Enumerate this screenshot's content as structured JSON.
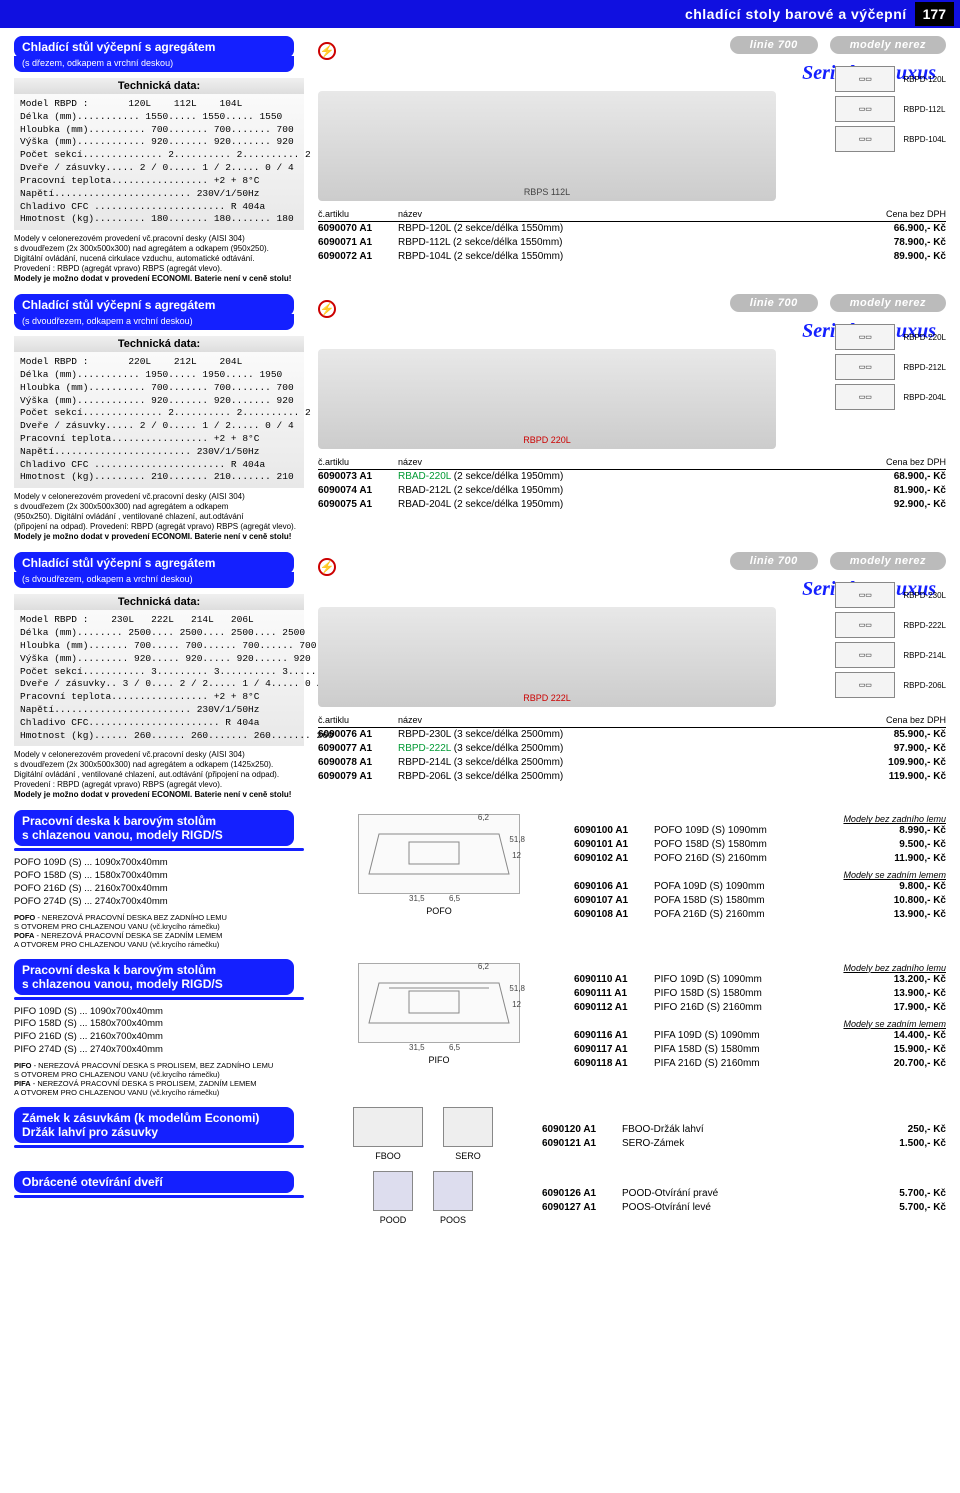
{
  "page": {
    "header_title": "chladící stoly barové a výčepní",
    "page_number": "177"
  },
  "common": {
    "linie": "linie 700",
    "modely": "modely nerez",
    "serie": "Serie bar-Luxus",
    "tech_header": "Technická data:",
    "price_cols": {
      "c1": "č.artiklu",
      "c2": "název",
      "c3": "Cena bez DPH"
    }
  },
  "sections": [
    {
      "title": "Chladící stůl výčepní s agregátem",
      "subtitle": "(s dřezem, odkapem a vrchní deskou)",
      "tech": "Model RBPD :       120L    112L    104L\nDélka (mm)........... 1550..... 1550..... 1550\nHloubka (mm).......... 700....... 700....... 700\nVýška (mm)............ 920....... 920....... 920\nPočet sekcí.............. 2.......... 2.......... 2\nDveře / zásuvky..... 2 / 0..... 1 / 2..... 0 / 4\nPracovní teplota................. +2 + 8°C\nNapětí........................ 230V/1/50Hz\nChladivo CFC ....................... R 404a\nHmotnost (kg)......... 180....... 180....... 180",
      "notes": "Modely v celonerezovém provedení vč.pracovní desky (AISI 304)\ns dvoudřezem (2x 300x500x300) nad agregátem a odkapem (950x250).\nDigitální ovládání, nucená cirkulace vzduchu, automatické odtávání.\nProvedení : RBPD (agregát vpravo) RBPS (agregát vlevo).\n<b>Modely je možno dodat v provedení ECONOMI. Baterie není v ceně stolu!</b>",
      "img_label": "RBPS 112L",
      "icons": [
        "RBPD-120L",
        "RBPD-112L",
        "RBPD-104L"
      ],
      "prices": [
        {
          "art": "6090070 A1",
          "name": "RBPD-120L (2 sekce/délka 1550mm)",
          "price": "66.900,- Kč"
        },
        {
          "art": "6090071 A1",
          "name": "RBPD-112L (2 sekce/délka 1550mm)",
          "price": "78.900,- Kč"
        },
        {
          "art": "6090072 A1",
          "name": "RBPD-104L (2 sekce/délka 1550mm)",
          "price": "89.900,- Kč"
        }
      ]
    },
    {
      "title": "Chladící stůl výčepní s agregátem",
      "subtitle": "(s dvoudřezem, odkapem a vrchní deskou)",
      "tech": "Model RBPD :       220L    212L    204L\nDélka (mm)........... 1950..... 1950..... 1950\nHloubka (mm).......... 700....... 700....... 700\nVýška (mm)............ 920....... 920....... 920\nPočet sekcí.............. 2.......... 2.......... 2\nDveře / zásuvky..... 2 / 0..... 1 / 2..... 0 / 4\nPracovní teplota................. +2 + 8°C\nNapětí........................ 230V/1/50Hz\nChladivo CFC ....................... R 404a\nHmotnost (kg)......... 210....... 210....... 210",
      "notes": "Modely v celonerezovém provedení vč.pracovní desky (AISI 304)\ns dvoudřezem (2x 300x500x300) nad agregátem a odkapem\n(950x250). Digitální ovládání , ventilované chlazení, aut.odtávání\n(připojení na odpad). Provedení: RBPD (agregát vpravo) RBPS (agregát vlevo).\n<b>Modely je možno dodat v provedení ECONOMI. Baterie není v ceně stolu!</b>",
      "img_label": "RBPD 220L",
      "img_label_color": "#cc0000",
      "icons": [
        "RBPD-220L",
        "RBPD-212L",
        "RBPD-204L"
      ],
      "prices": [
        {
          "art": "6090073 A1",
          "name_pre": "",
          "name_hl": "RBAD-220L",
          "hl_color": "green",
          "name_post": " (2 sekce/délka 1950mm)",
          "price": "68.900,- Kč"
        },
        {
          "art": "6090074 A1",
          "name": "RBAD-212L (2 sekce/délka 1950mm)",
          "price": "81.900,- Kč"
        },
        {
          "art": "6090075 A1",
          "name": "RBAD-204L (2 sekce/délka 1950mm)",
          "price": "92.900,- Kč"
        }
      ]
    },
    {
      "title": "Chladící stůl výčepní s agregátem",
      "subtitle": "(s dvoudřezem, odkapem a vrchní deskou)",
      "tech": "Model RBPD :    230L   222L   214L   206L\nDélka (mm)........ 2500.... 2500.... 2500.... 2500\nHloubka (mm)....... 700..... 700...... 700...... 700\nVýška (mm)......... 920..... 920..... 920...... 920\nPočet sekcí........... 3......... 3.......... 3.......... 3\nDveře / zásuvky.. 3 / 0.... 2 / 2..... 1 / 4..... 0 /6\nPracovní teplota................. +2 + 8°C\nNapětí........................ 230V/1/50Hz\nChladivo CFC....................... R 404a\nHmotnost (kg)...... 260...... 260....... 260....... 260",
      "notes": "Modely v celonerezovém provedení vč.pracovní desky (AISI 304)\ns dvoudřezem (2x 300x500x300) nad agregátem a odkapem (1425x250).\nDigitální ovládání , ventilované chlazení, aut.odtávání (připojení na odpad).\nProvedení : RBPD (agregát vpravo) RBPS (agregát vlevo).\n<b>Modely je možno dodat v provedení ECONOMI. Baterie není v ceně stolu!</b>",
      "img_label": "RBPD 222L",
      "img_label_color": "#cc0000",
      "icons": [
        "RBPD-230L",
        "RBPD-222L",
        "RBPD-214L",
        "RBPD-206L"
      ],
      "prices": [
        {
          "art": "6090076 A1",
          "name": "RBPD-230L (3 sekce/délka 2500mm)",
          "price": "85.900,- Kč"
        },
        {
          "art": "6090077 A1",
          "name_pre": "",
          "name_hl": "RBPD-222L",
          "hl_color": "green",
          "name_post": " (3 sekce/délka 2500mm)",
          "price": "97.900,- Kč"
        },
        {
          "art": "6090078 A1",
          "name": "RBPD-214L (3 sekce/délka 2500mm)",
          "price": "109.900,- Kč"
        },
        {
          "art": "6090079 A1",
          "name": "RBPD-206L (3 sekce/délka 2500mm)",
          "price": "119.900,- Kč"
        }
      ]
    }
  ],
  "pofo": {
    "title": "Pracovní deska k barovým stolům\ns chlazenou vanou, modely RIGD/S",
    "list": "POFO 109D (S) ... 1090x700x40mm\nPOFO 158D (S) ... 1580x700x40mm\nPOFO 216D (S) ... 2160x700x40mm\nPOFO 274D (S) ... 2740x700x40mm",
    "note": "<b>POFO</b> - NEREZOVÁ PRACOVNÍ DESKA BEZ ZADNÍHO LEMU\nS OTVOREM PRO CHLAZENOU VANU (vč.krycího rámečku)\n<b>POFA</b> - NEREZOVÁ PRACOVNÍ DESKA  SE ZADNÍM LEMEM\nA OTVOREM PRO CHLAZENOU VANU (vč.krycího rámečku)",
    "diag_label": "POFO",
    "dims": {
      "t": "6,2",
      "r": "51,8",
      "r2": "12",
      "b1": "31,5",
      "b2": "6,5"
    },
    "sub1": "Modely bez zadního lemu",
    "rows1": [
      {
        "art": "6090100 A1",
        "name": "POFO 109D (S) 1090mm",
        "price": "8.990,- Kč"
      },
      {
        "art": "6090101 A1",
        "name": "POFO 158D (S) 1580mm",
        "price": "9.500,- Kč"
      },
      {
        "art": "6090102 A1",
        "name": "POFO 216D (S) 2160mm",
        "price": "11.900,- Kč"
      }
    ],
    "sub2": "Modely se zadním lemem",
    "rows2": [
      {
        "art": "6090106 A1",
        "name": "POFA 109D (S) 1090mm",
        "price": "9.800,- Kč"
      },
      {
        "art": "6090107 A1",
        "name": "POFA 158D (S) 1580mm",
        "price": "10.800,- Kč"
      },
      {
        "art": "6090108 A1",
        "name": "POFA 216D (S) 2160mm",
        "price": "13.900,- Kč"
      }
    ]
  },
  "pifo": {
    "title": "Pracovní deska k barovým stolům\ns chlazenou vanou, modely RIGD/S",
    "list": "PIFO 109D (S) ... 1090x700x40mm\nPIFO 158D (S) ... 1580x700x40mm\nPIFO 216D (S) ... 2160x700x40mm\nPIFO 274D (S) ... 2740x700x40mm",
    "note": "<b>PIFO</b> - NEREZOVÁ PRACOVNÍ DESKA S PROLISEM, BEZ ZADNÍHO LEMU\nS OTVOREM PRO CHLAZENOU VANU (vč.krycího rámečku)\n<b>PIFA</b> - NEREZOVÁ PRACOVNÍ DESKA S PROLISEM, ZADNÍM LEMEM\nA OTVOREM PRO CHLAZENOU VANU (vč.krycího rámečku)",
    "diag_label": "PIFO",
    "dims": {
      "t": "6,2",
      "r": "51,8",
      "r2": "12",
      "b1": "31,5",
      "b2": "6,5"
    },
    "sub1": "Modely bez zadního lemu",
    "rows1": [
      {
        "art": "6090110 A1",
        "name": "PIFO 109D (S) 1090mm",
        "price": "13.200,- Kč"
      },
      {
        "art": "6090111 A1",
        "name": "PIFO 158D (S) 1580mm",
        "price": "13.900,- Kč"
      },
      {
        "art": "6090112 A1",
        "name": "PIFO 216D (S) 2160mm",
        "price": "17.900,- Kč"
      }
    ],
    "sub2": "Modely se zadním lemem",
    "rows2": [
      {
        "art": "6090116 A1",
        "name": "PIFA 109D (S) 1090mm",
        "price": "14.400,- Kč"
      },
      {
        "art": "6090117 A1",
        "name": "PIFA 158D (S) 1580mm",
        "price": "15.900,- Kč"
      },
      {
        "art": "6090118 A1",
        "name": "PIFA 216D (S) 2160mm",
        "price": "20.700,- Kč"
      }
    ]
  },
  "zamek": {
    "title": "Zámek k zásuvkám (k modelům Economi)\nDržák lahví pro zásuvky",
    "boxes": [
      "FBOO",
      "SERO"
    ],
    "rows": [
      {
        "art": "6090120 A1",
        "name": "FBOO-Držák lahví",
        "price": "250,- Kč"
      },
      {
        "art": "6090121 A1",
        "name": "SERO-Zámek",
        "price": "1.500,- Kč"
      }
    ]
  },
  "obrac": {
    "title": "Obrácené otevírání dveří",
    "boxes": [
      "POOD",
      "POOS"
    ],
    "rows": [
      {
        "art": "6090126 A1",
        "name": "POOD-Otvírání pravé",
        "price": "5.700,- Kč"
      },
      {
        "art": "6090127 A1",
        "name": "POOS-Otvírání levé",
        "price": "5.700,- Kč"
      }
    ]
  }
}
